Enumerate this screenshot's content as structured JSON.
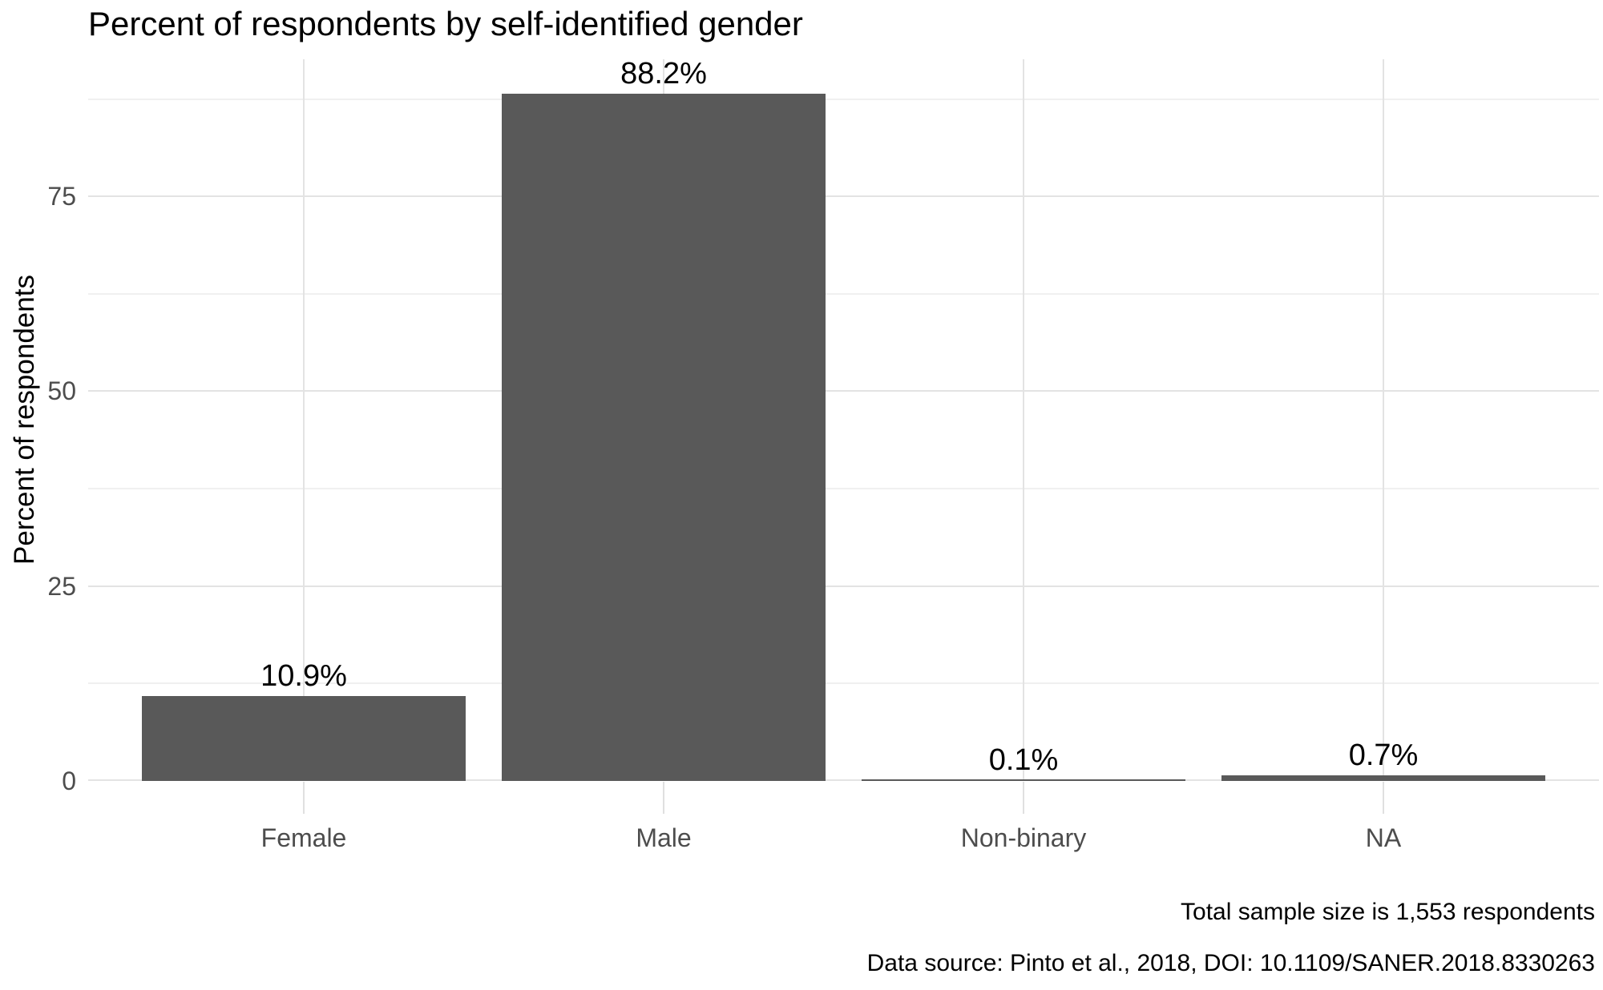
{
  "chart_data": {
    "type": "bar",
    "title": "Percent of respondents by self-identified gender",
    "xlabel": "",
    "ylabel": "Percent of respondents",
    "categories": [
      "Female",
      "Male",
      "Non-binary",
      "NA"
    ],
    "values": [
      10.9,
      88.2,
      0.1,
      0.7
    ],
    "bar_labels": [
      "10.9%",
      "88.2%",
      "0.1%",
      "0.7%"
    ],
    "ylim": [
      0,
      92.6
    ],
    "yticks": [
      0,
      25,
      50,
      75
    ],
    "ytick_labels": [
      "0",
      "25",
      "50",
      "75"
    ],
    "yticks_minor": [
      12.5,
      37.5,
      62.5,
      87.5
    ],
    "grid": "horizontal major and minor gridlines, vertical gridlines at category centers",
    "legend": "none",
    "bar_color": "#595959"
  },
  "captions": {
    "sample_size": "Total sample size is 1,553 respondents",
    "data_source": "Data source: Pinto et al., 2018, DOI: 10.1109/SANER.2018.8330263"
  },
  "colors": {
    "bar": "#595959",
    "grid_major": "#E3E3E3",
    "grid_minor": "#F0F0F0",
    "tick": "#E0E0E0",
    "axis_text": "#4D4D4D",
    "text": "#000000",
    "background": "#FFFFFF"
  }
}
